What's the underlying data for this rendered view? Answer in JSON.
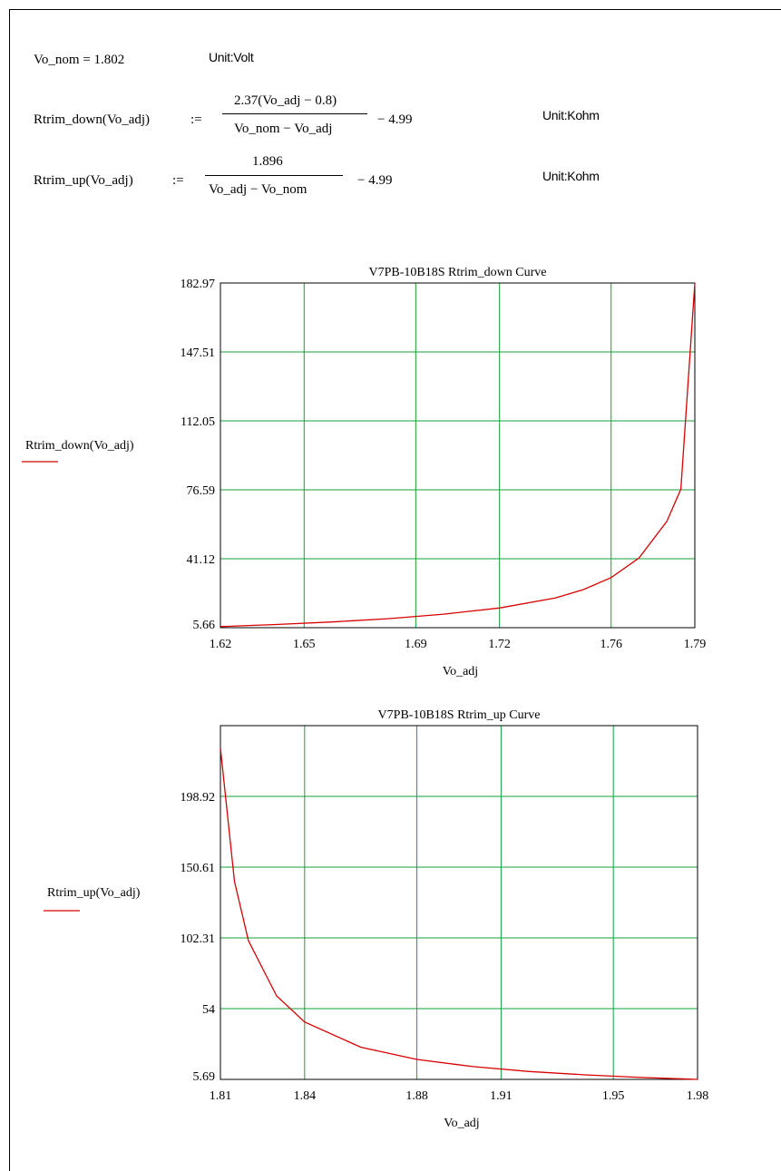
{
  "colors": {
    "grid": "#13a13a",
    "curve": "#d80000",
    "frame": "#000000"
  },
  "definitions": {
    "vo_nom": {
      "lhs": "Vo_nom = 1.802",
      "unit": "Unit:Volt"
    },
    "rtrim_down": {
      "lhs": "Rtrim_down(Vo_adj)",
      "assign": ":=",
      "numerator": "2.37(Vo_adj − 0.8)",
      "denominator": "Vo_nom − Vo_adj",
      "tail": "− 4.99",
      "unit": "Unit:Kohm"
    },
    "rtrim_up": {
      "lhs": "Rtrim_up(Vo_adj)",
      "assign": ":=",
      "numerator": "1.896",
      "denominator": "Vo_adj − Vo_nom",
      "tail": "− 4.99",
      "unit": "Unit:Kohm"
    }
  },
  "chart_data": [
    {
      "type": "line",
      "title": "V7PB-10B18S Rtrim_down Curve",
      "xlabel": "Vo_adj",
      "ylabel": "Rtrim_down(Vo_adj)",
      "xlim": [
        1.62,
        1.79
      ],
      "ylim": [
        5.66,
        182.97
      ],
      "x_ticks": [
        "1.62",
        "1.65",
        "1.69",
        "1.72",
        "1.76",
        "1.79"
      ],
      "y_ticks": [
        "5.66",
        "41.12",
        "76.59",
        "112.05",
        "147.51",
        "182.97"
      ],
      "grid": true,
      "series": [
        {
          "name": "Rtrim_down(Vo_adj)",
          "x": [
            1.62,
            1.64,
            1.66,
            1.68,
            1.7,
            1.72,
            1.74,
            1.75,
            1.76,
            1.77,
            1.78,
            1.785,
            1.79
          ],
          "y": [
            6.2,
            7.3,
            8.6,
            10.3,
            12.6,
            15.8,
            20.9,
            25.2,
            31.4,
            41.5,
            60.4,
            76.9,
            182.97
          ]
        }
      ]
    },
    {
      "type": "line",
      "title": "V7PB-10B18S Rtrim_up Curve",
      "xlabel": "Vo_adj",
      "ylabel": "Rtrim_up(Vo_adj)",
      "xlim": [
        1.81,
        1.98
      ],
      "ylim": [
        5.69,
        247.22
      ],
      "x_ticks": [
        "1.81",
        "1.84",
        "1.88",
        "1.91",
        "1.95",
        "1.98"
      ],
      "y_ticks": [
        "5.69",
        "54",
        "102.31",
        "150.61",
        "198.92"
      ],
      "grid": true,
      "series": [
        {
          "name": "Rtrim_up(Vo_adj)",
          "x": [
            1.81,
            1.815,
            1.82,
            1.83,
            1.84,
            1.86,
            1.88,
            1.9,
            1.92,
            1.94,
            1.96,
            1.98
          ],
          "y": [
            232.0,
            140.8,
            100.3,
            62.7,
            44.9,
            27.7,
            19.3,
            14.4,
            11.1,
            8.8,
            7.0,
            5.7
          ]
        }
      ]
    }
  ]
}
